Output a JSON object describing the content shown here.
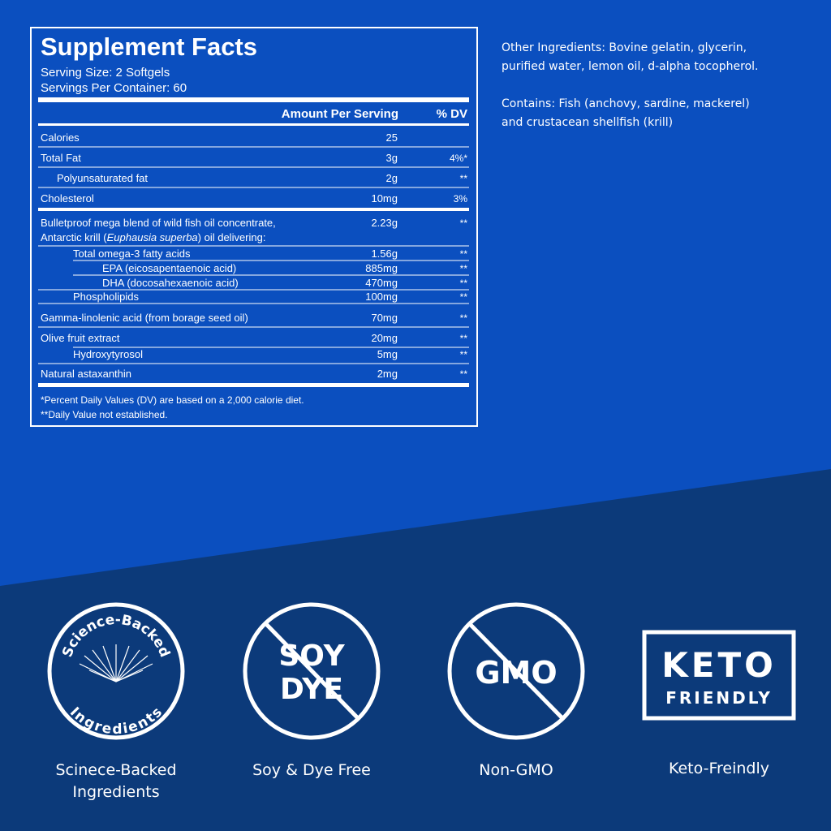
{
  "supplement_facts": {
    "title": "Supplement Facts",
    "serving_size": "Serving Size: 2 Softgels",
    "servings_per_container": "Servings Per Container: 60",
    "header_amount": "Amount Per Serving",
    "header_dv": "% DV",
    "rows": [
      {
        "label": "Calories",
        "amount": "25"
      },
      {
        "label": "Total Fat",
        "amount": "3g",
        "dv": "4%*"
      },
      {
        "label": "Polyunsaturated fat",
        "amount": "2g",
        "dv": "**"
      },
      {
        "label": "Cholesterol",
        "amount": "10mg",
        "dv": "3%"
      },
      {
        "label_parts": [
          "Bulletproof mega blend of wild fish oil concentrate,",
          "Antarctic krill (",
          "Euphausia superba",
          ") oil delivering:"
        ],
        "amount": "2.23g",
        "dv": "**"
      },
      {
        "label": "Total omega-3 fatty acids",
        "amount": "1.56g",
        "dv": "**"
      },
      {
        "label": "EPA (eicosapentaenoic acid)",
        "amount": "885mg",
        "dv": "**"
      },
      {
        "label": "DHA (docosahexaenoic acid)",
        "amount": "470mg",
        "dv": "**"
      },
      {
        "label": "Phospholipids",
        "amount": "100mg",
        "dv": "**"
      },
      {
        "label": "Gamma-linolenic acid (from borage seed oil)",
        "amount": "70mg",
        "dv": "**"
      },
      {
        "label": "Olive fruit extract",
        "amount": "20mg",
        "dv": "**"
      },
      {
        "label": "Hydroxytyrosol",
        "amount": "5mg",
        "dv": "**"
      },
      {
        "label": "Natural astaxanthin",
        "amount": "2mg",
        "dv": "**"
      }
    ],
    "footnotes": [
      "*Percent Daily Values (DV) are based on a 2,000 calorie diet.",
      "**Daily Value not established."
    ]
  },
  "other_ingredients": [
    "Other Ingredients: Bovine gelatin, glycerin,",
    "purified water, lemon oil, d-alpha tocopherol."
  ],
  "contains": [
    "Contains: Fish (anchovy, sardine, mackerel)",
    "and crustacean shellfish (krill)"
  ],
  "badges": [
    {
      "icon_text": [
        "Science-Backed",
        "Ingredients"
      ],
      "caption": [
        "Scinece-Backed",
        "Ingredients"
      ]
    },
    {
      "icon_text": [
        "SOY",
        "DYE"
      ],
      "caption": [
        "Soy & Dye Free"
      ]
    },
    {
      "icon_text": [
        "GMO"
      ],
      "caption": [
        "Non-GMO"
      ]
    },
    {
      "icon_text": [
        "KETO",
        "FRIENDLY"
      ],
      "caption": [
        "Keto-Freindly"
      ]
    }
  ]
}
